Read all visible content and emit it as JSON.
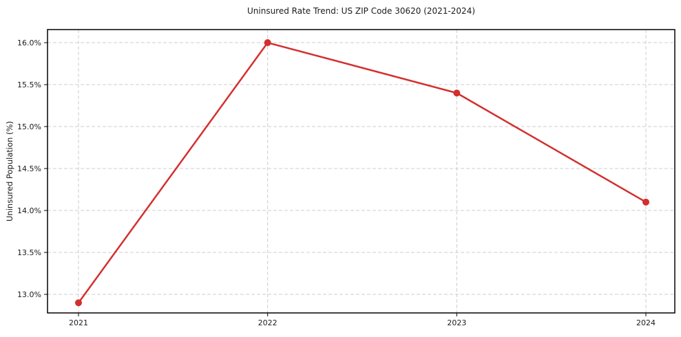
{
  "chart_data": {
    "type": "line",
    "title": "Uninsured Rate Trend: US ZIP Code 30620 (2021-2024)",
    "xlabel": "",
    "ylabel": "Uninsured Population (%)",
    "categories": [
      "2021",
      "2022",
      "2023",
      "2024"
    ],
    "values": [
      12.9,
      16.0,
      15.4,
      14.1
    ],
    "y_ticks": [
      13.0,
      13.5,
      14.0,
      14.5,
      15.0,
      15.5,
      16.0
    ],
    "y_tick_labels": [
      "13.0%",
      "13.5%",
      "14.0%",
      "14.5%",
      "15.0%",
      "15.5%",
      "16.0%"
    ],
    "ylim": [
      12.779,
      16.156
    ],
    "grid": true,
    "grid_style": "dashed",
    "legend": "none",
    "colors": {
      "line": "#d32f2f",
      "marker": "#d32f2f",
      "grid": "#cccccc",
      "axis": "#000000",
      "text": "#1a1a1a",
      "background": "#ffffff"
    }
  }
}
